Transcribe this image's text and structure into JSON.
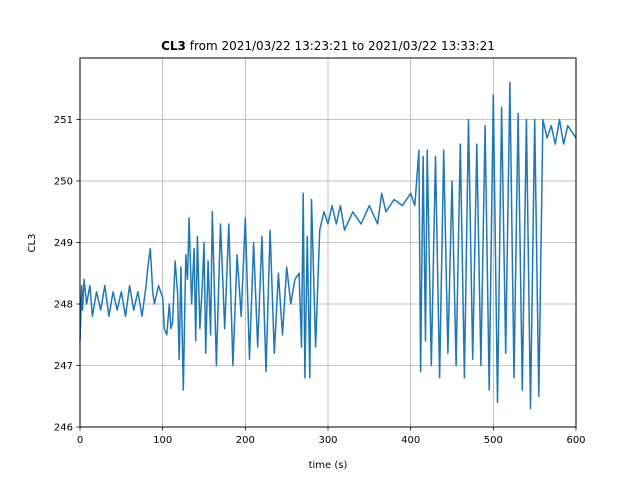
{
  "chart_data": {
    "type": "line",
    "title_bold": "CL3",
    "title_rest": " from 2021/03/22 13:23:21 to 2021/03/22 13:33:21",
    "xlabel": "time (s)",
    "ylabel": "CL3",
    "xlim": [
      0,
      600
    ],
    "ylim": [
      246,
      252
    ],
    "xticks": [
      0,
      100,
      200,
      300,
      400,
      500,
      600
    ],
    "yticks": [
      246,
      247,
      248,
      249,
      250,
      251
    ],
    "grid": true,
    "series": [
      {
        "color": "#1f77b4",
        "x": [
          0,
          2,
          3,
          5,
          8,
          12,
          15,
          20,
          25,
          30,
          35,
          40,
          45,
          50,
          55,
          60,
          65,
          70,
          75,
          80,
          82,
          85,
          88,
          90,
          95,
          100,
          102,
          105,
          108,
          110,
          112,
          115,
          118,
          120,
          122,
          125,
          128,
          130,
          132,
          135,
          138,
          140,
          142,
          145,
          148,
          150,
          152,
          155,
          158,
          160,
          165,
          170,
          175,
          180,
          185,
          190,
          195,
          200,
          205,
          210,
          215,
          220,
          225,
          230,
          235,
          240,
          245,
          250,
          255,
          260,
          265,
          268,
          270,
          272,
          275,
          278,
          280,
          285,
          290,
          295,
          300,
          305,
          310,
          315,
          320,
          330,
          340,
          350,
          360,
          365,
          370,
          380,
          390,
          400,
          405,
          410,
          412,
          415,
          418,
          420,
          425,
          430,
          435,
          440,
          445,
          450,
          455,
          460,
          465,
          470,
          475,
          480,
          485,
          490,
          495,
          500,
          505,
          510,
          515,
          520,
          525,
          530,
          535,
          540,
          545,
          550,
          555,
          560,
          565,
          570,
          575,
          580,
          585,
          590,
          595,
          600
        ],
        "y": [
          247.4,
          248.3,
          247.9,
          248.4,
          248.0,
          248.3,
          247.8,
          248.2,
          247.9,
          248.3,
          247.8,
          248.2,
          247.9,
          248.2,
          247.8,
          248.3,
          247.9,
          248.2,
          247.8,
          248.3,
          248.6,
          248.9,
          248.2,
          248.0,
          248.3,
          248.1,
          247.6,
          247.5,
          248.0,
          247.6,
          247.7,
          248.7,
          248.2,
          247.1,
          248.6,
          246.6,
          248.8,
          248.4,
          249.4,
          248.0,
          248.9,
          247.4,
          249.1,
          247.6,
          248.3,
          249.0,
          247.2,
          248.7,
          247.5,
          249.5,
          247.0,
          249.3,
          247.6,
          249.3,
          247.0,
          248.8,
          247.8,
          249.4,
          247.1,
          249.0,
          247.3,
          249.1,
          246.9,
          249.2,
          247.2,
          248.5,
          247.5,
          248.6,
          248.0,
          248.4,
          248.5,
          247.3,
          249.8,
          246.8,
          249.1,
          246.8,
          249.7,
          247.3,
          249.2,
          249.5,
          249.3,
          249.6,
          249.3,
          249.6,
          249.2,
          249.5,
          249.3,
          249.6,
          249.3,
          249.8,
          249.5,
          249.7,
          249.6,
          249.8,
          249.6,
          250.5,
          246.9,
          250.4,
          247.4,
          250.5,
          247.0,
          250.4,
          246.8,
          250.5,
          247.2,
          250.0,
          247.0,
          250.6,
          246.8,
          251.0,
          247.1,
          250.6,
          247.0,
          250.9,
          246.6,
          251.4,
          246.4,
          251.2,
          247.2,
          251.6,
          246.8,
          251.1,
          246.6,
          251.0,
          246.3,
          251.0,
          246.5,
          251.0,
          250.7,
          250.9,
          250.6,
          251.0,
          250.6,
          250.9,
          250.8,
          250.7
        ]
      }
    ]
  }
}
